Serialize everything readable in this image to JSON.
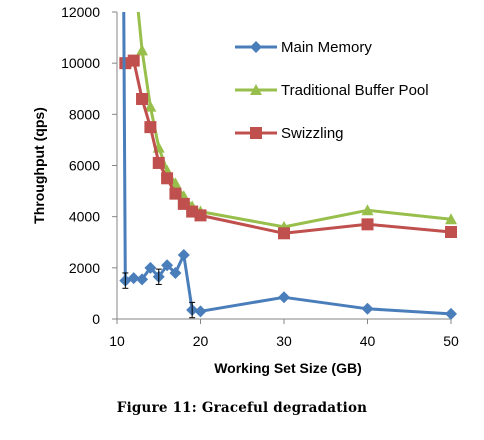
{
  "chart_data": {
    "type": "line",
    "title": "",
    "xlabel": "Working Set Size (GB)",
    "ylabel": "Throughput (qps)",
    "xlim": [
      10,
      50
    ],
    "ylim": [
      0,
      12000
    ],
    "xticks": [
      10,
      20,
      30,
      40,
      50
    ],
    "yticks": [
      0,
      2000,
      4000,
      6000,
      8000,
      10000,
      12000
    ],
    "grid": false,
    "legend_position": "top-right",
    "series": [
      {
        "name": "Main Memory",
        "color": "#4a7ebb",
        "marker": "diamond",
        "x": [
          10.8,
          11,
          12,
          13,
          14,
          15,
          16,
          17,
          18,
          19,
          20,
          30,
          40,
          50
        ],
        "y": [
          12500,
          1500,
          1600,
          1550,
          2000,
          1650,
          2100,
          1800,
          2500,
          350,
          300,
          850,
          400,
          200
        ]
      },
      {
        "name": "Traditional Buffer Pool",
        "color": "#98bf4c",
        "marker": "triangle",
        "x": [
          12.4,
          13,
          14,
          15,
          16,
          17,
          18,
          19,
          20,
          30,
          40,
          50
        ],
        "y": [
          12500,
          10500,
          8300,
          6700,
          5800,
          5300,
          4800,
          4400,
          4200,
          3600,
          4250,
          3900
        ]
      },
      {
        "name": "Swizzling",
        "color": "#c0504d",
        "marker": "square",
        "x": [
          11,
          12,
          13,
          14,
          15,
          16,
          17,
          18,
          19,
          20,
          30,
          40,
          50
        ],
        "y": [
          10000,
          10100,
          8600,
          7500,
          6100,
          5500,
          4900,
          4500,
          4200,
          4050,
          3350,
          3700,
          3400
        ]
      }
    ]
  },
  "caption": "Figure 11:  Graceful degradation"
}
